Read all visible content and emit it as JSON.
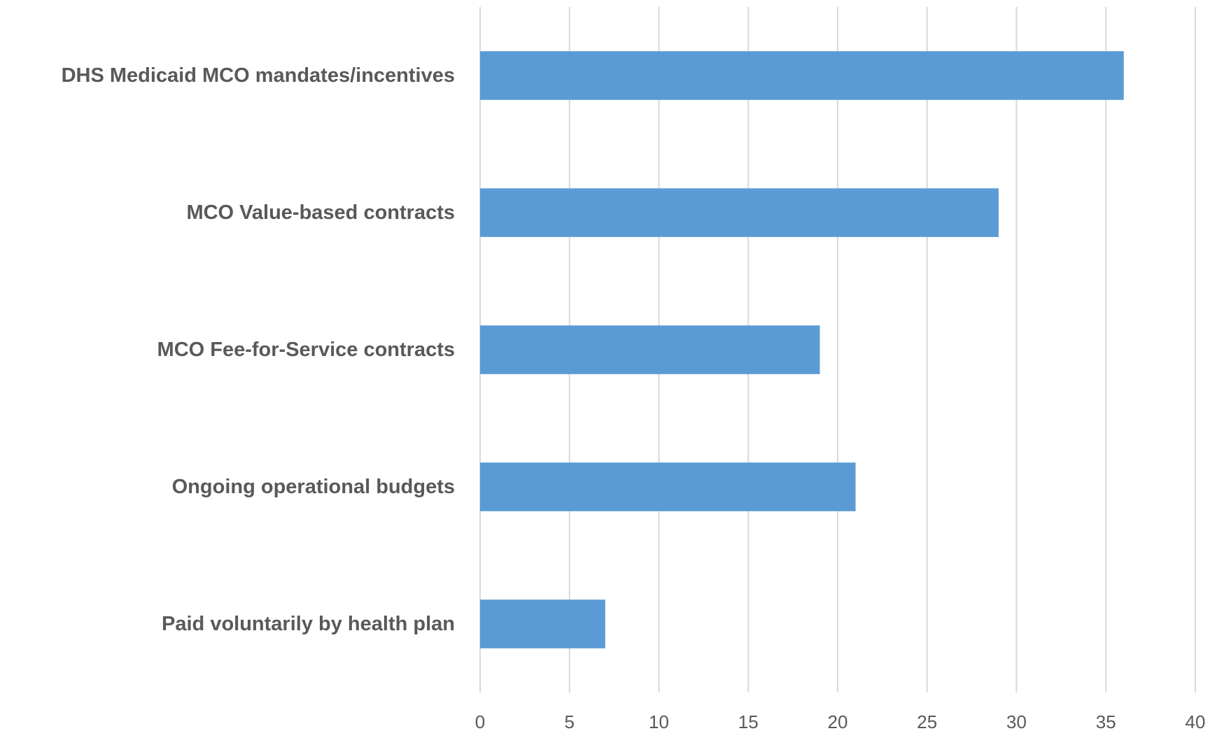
{
  "chart_data": {
    "type": "bar",
    "orientation": "horizontal",
    "categories": [
      "DHS Medicaid MCO mandates/incentives",
      "MCO Value-based contracts",
      "MCO Fee-for-Service contracts",
      "Ongoing operational budgets",
      "Paid voluntarily by health plan"
    ],
    "values": [
      36,
      29,
      19,
      21,
      7
    ],
    "title": "",
    "xlabel": "",
    "ylabel": "",
    "xlim": [
      0,
      40
    ],
    "xticks": [
      "0",
      "5",
      "10",
      "15",
      "20",
      "25",
      "30",
      "35",
      "40"
    ],
    "grid": "vertical",
    "legend": "none",
    "colors": {
      "bar": "#5b9bd5",
      "grid": "#d9d9d9",
      "text": "#595959"
    }
  }
}
